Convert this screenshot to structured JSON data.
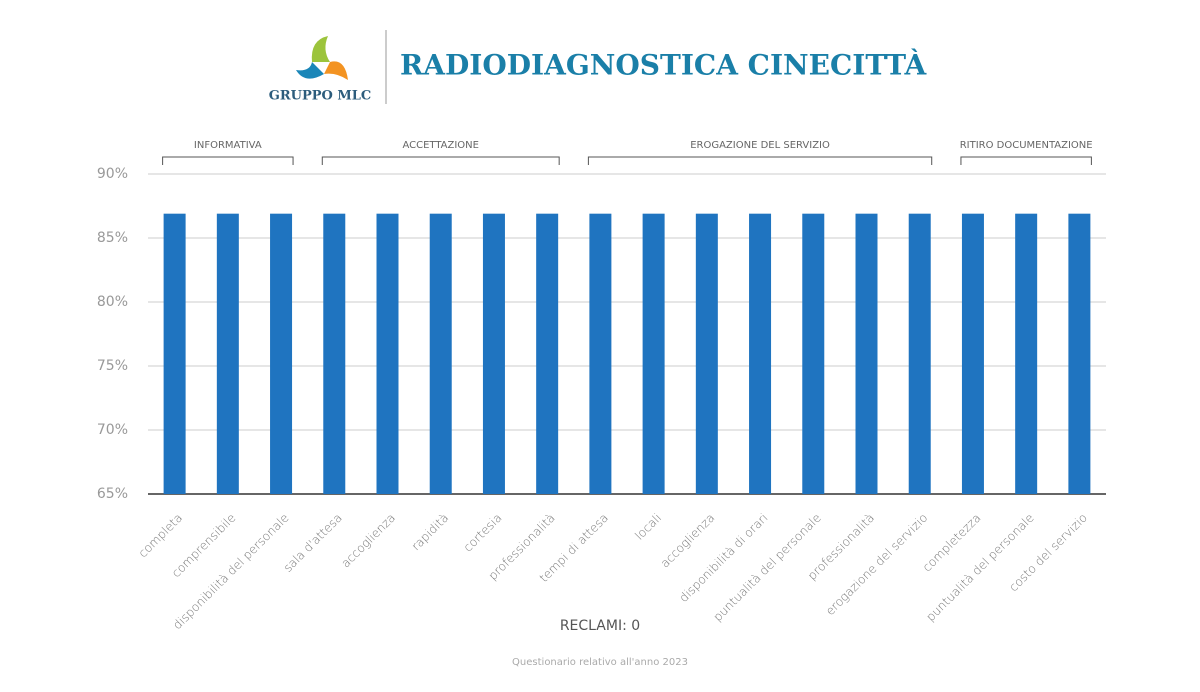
{
  "header": {
    "logo_text": "GRUPPO MLC",
    "title": "RADIODIAGNOSTICA CINECITTÀ"
  },
  "chart_data": {
    "type": "bar",
    "groups": [
      {
        "name": "INFORMATIVA",
        "categories": [
          "completa",
          "comprensibile",
          "disponibilità del personale"
        ],
        "values": [
          86.9,
          86.9,
          86.9
        ]
      },
      {
        "name": "ACCETTAZIONE",
        "categories": [
          "sala d'attesa",
          "accoglienza",
          "rapidità",
          "cortesia",
          "professionalità"
        ],
        "values": [
          86.9,
          86.9,
          86.9,
          86.9,
          86.9
        ]
      },
      {
        "name": "EROGAZIONE DEL SERVIZIO",
        "categories": [
          "tempi di attesa",
          "locali",
          "accoglienza",
          "disponibilità di orari",
          "puntualità del personale",
          "professionalità",
          "erogazione del servizio"
        ],
        "values": [
          86.9,
          86.9,
          86.9,
          86.9,
          86.9,
          86.9,
          86.9
        ]
      },
      {
        "name": "RITIRO DOCUMENTAZIONE",
        "categories": [
          "completezza",
          "puntualità del personale",
          "costo del servizio"
        ],
        "values": [
          86.9,
          86.9,
          86.9
        ]
      }
    ],
    "color": "#1f74c0",
    "ylim": [
      65,
      90
    ],
    "yticks": [
      {
        "value": 65,
        "label": "65%"
      },
      {
        "value": 70,
        "label": "70%"
      },
      {
        "value": 75,
        "label": "75%"
      },
      {
        "value": 80,
        "label": "80%"
      },
      {
        "value": 85,
        "label": "85%"
      },
      {
        "value": 90,
        "label": "90%"
      }
    ],
    "grid": true,
    "note": "RECLAMI: 0"
  },
  "footer": "Questionario relativo all'anno 2023"
}
